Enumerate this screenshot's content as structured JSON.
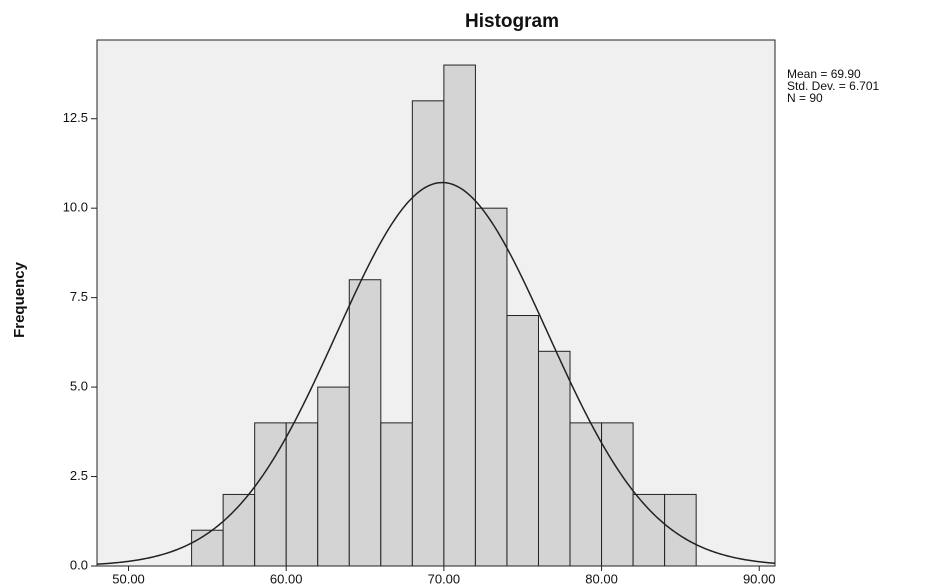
{
  "chart_data": {
    "type": "histogram",
    "title": "Histogram",
    "y_label": "Frequency",
    "bins": [
      54,
      56,
      58,
      60,
      62,
      64,
      66,
      68,
      70,
      72,
      74,
      76,
      78,
      80,
      82,
      84,
      86
    ],
    "counts": [
      1,
      2,
      4,
      4,
      5,
      8,
      4,
      13,
      14,
      10,
      7,
      6,
      4,
      4,
      2,
      2
    ],
    "color": "#d4d4d4",
    "xlim": [
      48,
      91
    ],
    "xticks": [
      {
        "value": 50,
        "label": "50.00"
      },
      {
        "value": 60,
        "label": "60.00"
      },
      {
        "value": 70,
        "label": "70.00"
      },
      {
        "value": 80,
        "label": "80.00"
      },
      {
        "value": 90,
        "label": "90.00"
      }
    ],
    "ylim": [
      0,
      14.7
    ],
    "yticks": [
      {
        "value": 0,
        "label": "0.0"
      },
      2.5,
      {
        "value": 5,
        "label": "5.0"
      },
      7.5,
      {
        "value": 10,
        "label": "10.0"
      },
      12.5
    ],
    "stats": [
      {
        "label": "Mean = 69.90",
        "value": 69.9
      },
      {
        "label": "Std. Dev. = 6.701",
        "value": 6.701
      },
      {
        "label": "N = 90",
        "value": 90
      }
    ]
  }
}
